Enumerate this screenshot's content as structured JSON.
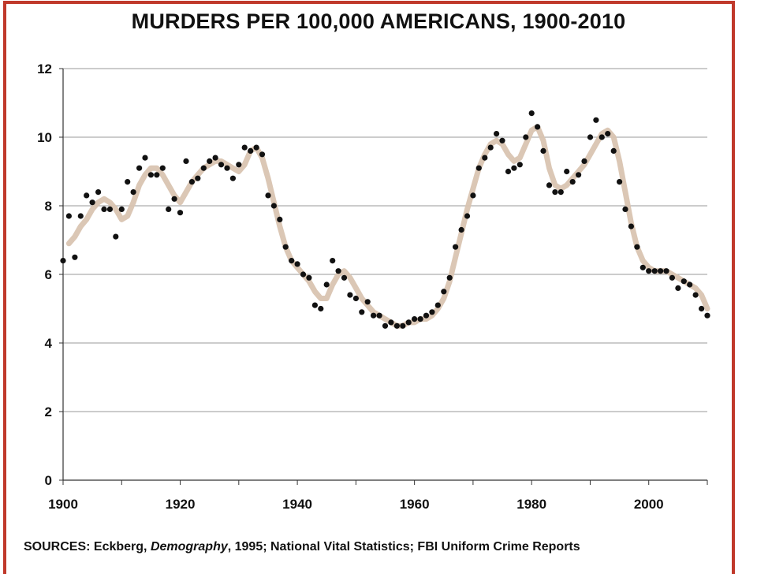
{
  "chart_data": {
    "type": "scatter",
    "title": "MURDERS PER 100,000 AMERICANS, 1900-2010",
    "xlabel": "",
    "ylabel": "",
    "xlim": [
      1900,
      2010
    ],
    "ylim": [
      0,
      12
    ],
    "x_ticks": [
      "1900",
      "1920",
      "1940",
      "1960",
      "1980",
      "2000"
    ],
    "y_ticks": [
      "0",
      "2",
      "4",
      "6",
      "8",
      "10",
      "12"
    ],
    "grid": "horizontal",
    "legend": "none",
    "colors": {
      "points": "#111111",
      "trend": "#d9c4b1",
      "grid": "#999999",
      "border": "#c0392b"
    },
    "series": [
      {
        "type": "scatter",
        "points": [
          [
            1900,
            6.4
          ],
          [
            1901,
            7.7
          ],
          [
            1902,
            6.5
          ],
          [
            1903,
            7.7
          ],
          [
            1904,
            8.3
          ],
          [
            1905,
            8.1
          ],
          [
            1906,
            8.4
          ],
          [
            1907,
            7.9
          ],
          [
            1908,
            7.9
          ],
          [
            1909,
            7.1
          ],
          [
            1910,
            7.9
          ],
          [
            1911,
            8.7
          ],
          [
            1912,
            8.4
          ],
          [
            1913,
            9.1
          ],
          [
            1914,
            9.4
          ],
          [
            1915,
            8.9
          ],
          [
            1916,
            8.9
          ],
          [
            1917,
            9.1
          ],
          [
            1918,
            7.9
          ],
          [
            1919,
            8.2
          ],
          [
            1920,
            7.8
          ],
          [
            1921,
            9.3
          ],
          [
            1922,
            8.7
          ],
          [
            1923,
            8.8
          ],
          [
            1924,
            9.1
          ],
          [
            1925,
            9.3
          ],
          [
            1926,
            9.4
          ],
          [
            1927,
            9.2
          ],
          [
            1928,
            9.1
          ],
          [
            1929,
            8.8
          ],
          [
            1930,
            9.2
          ],
          [
            1931,
            9.7
          ],
          [
            1932,
            9.6
          ],
          [
            1933,
            9.7
          ],
          [
            1934,
            9.5
          ],
          [
            1935,
            8.3
          ],
          [
            1936,
            8.0
          ],
          [
            1937,
            7.6
          ],
          [
            1938,
            6.8
          ],
          [
            1939,
            6.4
          ],
          [
            1940,
            6.3
          ],
          [
            1941,
            6.0
          ],
          [
            1942,
            5.9
          ],
          [
            1943,
            5.1
          ],
          [
            1944,
            5.0
          ],
          [
            1945,
            5.7
          ],
          [
            1946,
            6.4
          ],
          [
            1947,
            6.1
          ],
          [
            1948,
            5.9
          ],
          [
            1949,
            5.4
          ],
          [
            1950,
            5.3
          ],
          [
            1951,
            4.9
          ],
          [
            1952,
            5.2
          ],
          [
            1953,
            4.8
          ],
          [
            1954,
            4.8
          ],
          [
            1955,
            4.5
          ],
          [
            1956,
            4.6
          ],
          [
            1957,
            4.5
          ],
          [
            1958,
            4.5
          ],
          [
            1959,
            4.6
          ],
          [
            1960,
            4.7
          ],
          [
            1961,
            4.7
          ],
          [
            1962,
            4.8
          ],
          [
            1963,
            4.9
          ],
          [
            1964,
            5.1
          ],
          [
            1965,
            5.5
          ],
          [
            1966,
            5.9
          ],
          [
            1967,
            6.8
          ],
          [
            1968,
            7.3
          ],
          [
            1969,
            7.7
          ],
          [
            1970,
            8.3
          ],
          [
            1971,
            9.1
          ],
          [
            1972,
            9.4
          ],
          [
            1973,
            9.7
          ],
          [
            1974,
            10.1
          ],
          [
            1975,
            9.9
          ],
          [
            1976,
            9.0
          ],
          [
            1977,
            9.1
          ],
          [
            1978,
            9.2
          ],
          [
            1979,
            10.0
          ],
          [
            1980,
            10.7
          ],
          [
            1981,
            10.3
          ],
          [
            1982,
            9.6
          ],
          [
            1983,
            8.6
          ],
          [
            1984,
            8.4
          ],
          [
            1985,
            8.4
          ],
          [
            1986,
            9.0
          ],
          [
            1987,
            8.7
          ],
          [
            1988,
            8.9
          ],
          [
            1989,
            9.3
          ],
          [
            1990,
            10.0
          ],
          [
            1991,
            10.5
          ],
          [
            1992,
            10.0
          ],
          [
            1993,
            10.1
          ],
          [
            1994,
            9.6
          ],
          [
            1995,
            8.7
          ],
          [
            1996,
            7.9
          ],
          [
            1997,
            7.4
          ],
          [
            1998,
            6.8
          ],
          [
            1999,
            6.2
          ],
          [
            2000,
            6.1
          ],
          [
            2001,
            6.1
          ],
          [
            2002,
            6.1
          ],
          [
            2003,
            6.1
          ],
          [
            2004,
            5.9
          ],
          [
            2005,
            5.6
          ],
          [
            2006,
            5.8
          ],
          [
            2007,
            5.7
          ],
          [
            2008,
            5.4
          ],
          [
            2009,
            5.0
          ],
          [
            2010,
            4.8
          ]
        ]
      },
      {
        "type": "line",
        "points": [
          [
            1901,
            6.9
          ],
          [
            1902,
            7.1
          ],
          [
            1903,
            7.4
          ],
          [
            1904,
            7.6
          ],
          [
            1905,
            7.9
          ],
          [
            1906,
            8.1
          ],
          [
            1907,
            8.2
          ],
          [
            1908,
            8.1
          ],
          [
            1909,
            7.9
          ],
          [
            1910,
            7.6
          ],
          [
            1911,
            7.7
          ],
          [
            1912,
            8.1
          ],
          [
            1913,
            8.6
          ],
          [
            1914,
            8.9
          ],
          [
            1915,
            9.1
          ],
          [
            1916,
            9.1
          ],
          [
            1917,
            8.9
          ],
          [
            1918,
            8.6
          ],
          [
            1919,
            8.3
          ],
          [
            1920,
            8.1
          ],
          [
            1921,
            8.4
          ],
          [
            1922,
            8.7
          ],
          [
            1923,
            8.9
          ],
          [
            1924,
            9.1
          ],
          [
            1925,
            9.2
          ],
          [
            1926,
            9.3
          ],
          [
            1927,
            9.3
          ],
          [
            1928,
            9.2
          ],
          [
            1929,
            9.1
          ],
          [
            1930,
            9.0
          ],
          [
            1931,
            9.2
          ],
          [
            1932,
            9.6
          ],
          [
            1933,
            9.7
          ],
          [
            1934,
            9.4
          ],
          [
            1935,
            8.8
          ],
          [
            1936,
            8.1
          ],
          [
            1937,
            7.4
          ],
          [
            1938,
            6.8
          ],
          [
            1939,
            6.4
          ],
          [
            1940,
            6.2
          ],
          [
            1941,
            6.0
          ],
          [
            1942,
            5.8
          ],
          [
            1943,
            5.5
          ],
          [
            1944,
            5.3
          ],
          [
            1945,
            5.3
          ],
          [
            1946,
            5.7
          ],
          [
            1947,
            6.0
          ],
          [
            1948,
            6.1
          ],
          [
            1949,
            5.9
          ],
          [
            1950,
            5.6
          ],
          [
            1951,
            5.3
          ],
          [
            1952,
            5.1
          ],
          [
            1953,
            4.9
          ],
          [
            1954,
            4.8
          ],
          [
            1955,
            4.7
          ],
          [
            1956,
            4.6
          ],
          [
            1957,
            4.5
          ],
          [
            1958,
            4.5
          ],
          [
            1959,
            4.6
          ],
          [
            1960,
            4.6
          ],
          [
            1961,
            4.7
          ],
          [
            1962,
            4.7
          ],
          [
            1963,
            4.8
          ],
          [
            1964,
            5.0
          ],
          [
            1965,
            5.3
          ],
          [
            1966,
            5.8
          ],
          [
            1967,
            6.5
          ],
          [
            1968,
            7.2
          ],
          [
            1969,
            7.9
          ],
          [
            1970,
            8.5
          ],
          [
            1971,
            9.1
          ],
          [
            1972,
            9.5
          ],
          [
            1973,
            9.8
          ],
          [
            1974,
            9.9
          ],
          [
            1975,
            9.8
          ],
          [
            1976,
            9.5
          ],
          [
            1977,
            9.3
          ],
          [
            1978,
            9.4
          ],
          [
            1979,
            9.8
          ],
          [
            1980,
            10.2
          ],
          [
            1981,
            10.3
          ],
          [
            1982,
            9.9
          ],
          [
            1983,
            9.1
          ],
          [
            1984,
            8.6
          ],
          [
            1985,
            8.5
          ],
          [
            1986,
            8.6
          ],
          [
            1987,
            8.8
          ],
          [
            1988,
            9.0
          ],
          [
            1989,
            9.2
          ],
          [
            1990,
            9.5
          ],
          [
            1991,
            9.8
          ],
          [
            1992,
            10.1
          ],
          [
            1993,
            10.2
          ],
          [
            1994,
            10.0
          ],
          [
            1995,
            9.3
          ],
          [
            1996,
            8.4
          ],
          [
            1997,
            7.5
          ],
          [
            1998,
            6.8
          ],
          [
            1999,
            6.4
          ],
          [
            2000,
            6.2
          ],
          [
            2001,
            6.1
          ],
          [
            2002,
            6.1
          ],
          [
            2003,
            6.1
          ],
          [
            2004,
            6.0
          ],
          [
            2005,
            5.9
          ],
          [
            2006,
            5.8
          ],
          [
            2007,
            5.7
          ],
          [
            2008,
            5.6
          ],
          [
            2009,
            5.4
          ],
          [
            2010,
            5.0
          ]
        ]
      }
    ]
  },
  "sources": {
    "prefix": "SOURCES: Eckberg, ",
    "journal": "Demography",
    "suffix": ", 1995; National Vital Statistics; FBI Uniform Crime Reports"
  }
}
